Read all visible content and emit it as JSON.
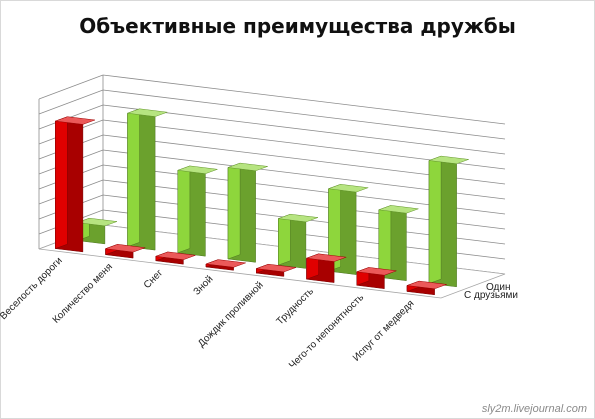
{
  "watermark": "sly2m.livejournal.com",
  "chart_data": {
    "type": "bar",
    "title": "Объективные преимущества дружбы",
    "categories": [
      "Веселость дороги",
      "Количество меня",
      "Снег",
      "Зной",
      "Дождик проливной",
      "Трудность",
      "Чего-то непонятность",
      "Испуг от медведя"
    ],
    "series": [
      {
        "name": "С друзьями",
        "color": "#e00000",
        "values": [
          8.5,
          0.4,
          0.3,
          0.2,
          0.3,
          1.4,
          0.9,
          0.4
        ]
      },
      {
        "name": "Один",
        "color": "#8ed63c",
        "values": [
          1.2,
          8.9,
          5.5,
          6.1,
          3.1,
          5.5,
          4.5,
          8.2
        ]
      }
    ],
    "ylim": [
      0,
      10
    ],
    "grid": true,
    "view": "3d-column",
    "legend_position": "right"
  }
}
